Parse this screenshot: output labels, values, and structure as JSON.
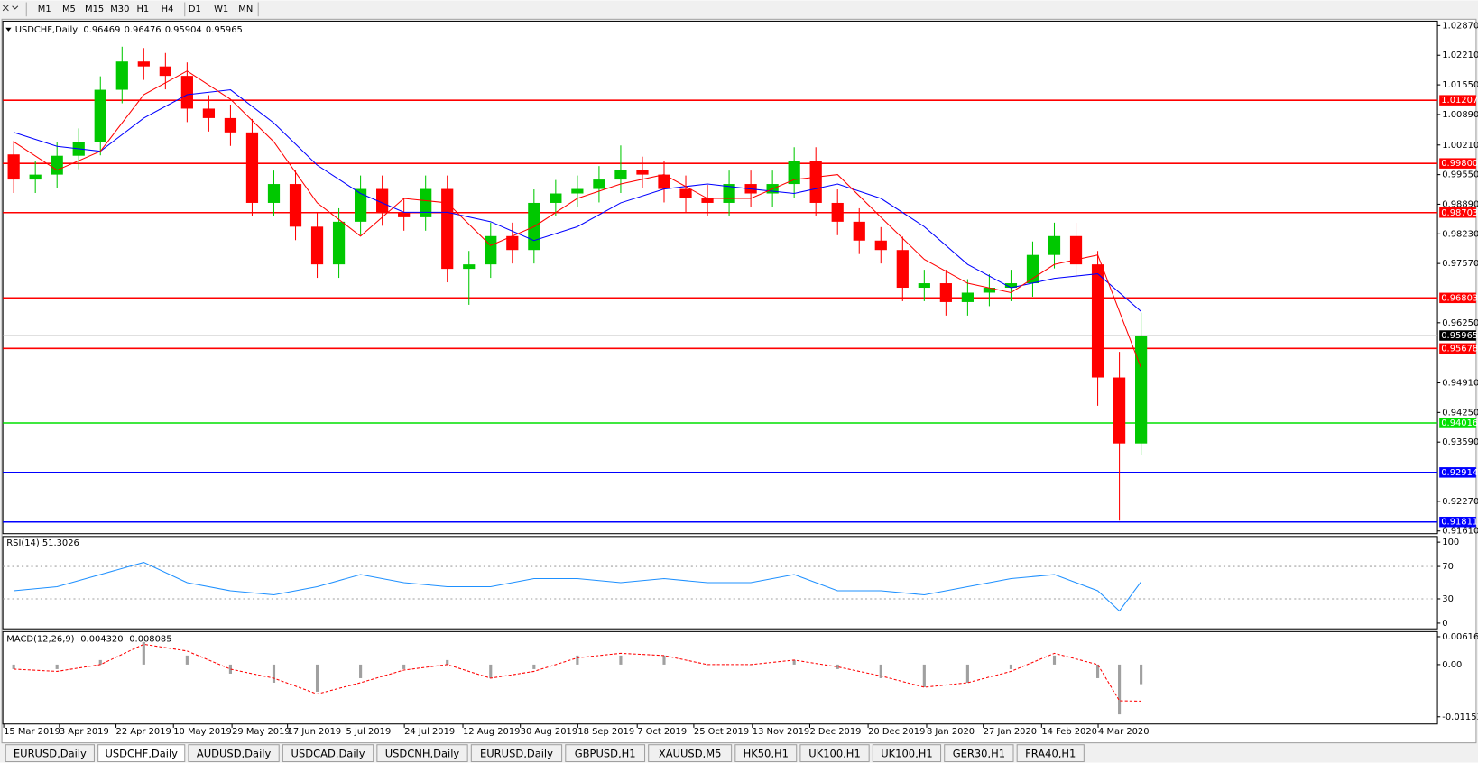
{
  "toolbar": [
    "M1",
    "M5",
    "M15",
    "M30",
    "H1",
    "H4",
    "D1",
    "W1",
    "MN"
  ],
  "tabs": [
    "EURUSD,Daily",
    "USDCHF,Daily",
    "AUDUSD,Daily",
    "USDCAD,Daily",
    "USDCNH,Daily",
    "EURUSD,Daily",
    "GBPUSD,H1",
    "XAUUSD,M5",
    "HK50,H1",
    "UK100,H1",
    "UK100,H1",
    "GER30,H1",
    "FRA40,H1"
  ],
  "active_tab": 1,
  "chart_data": [
    {
      "type": "candlestick",
      "title": "USDCHF,Daily",
      "header_prices": [
        0.96469,
        0.96476,
        0.95904,
        0.95965
      ],
      "up_color": "#00c800",
      "down_color": "#ff0000",
      "x": [
        0,
        1,
        2,
        3,
        4,
        5,
        6,
        7,
        8,
        9,
        10,
        11,
        12,
        13,
        14,
        15,
        16,
        17,
        18,
        19,
        20,
        21,
        22,
        23,
        24,
        25,
        26,
        27,
        28,
        29,
        30,
        31,
        32,
        33,
        34,
        35,
        36,
        37,
        38,
        39,
        40,
        41,
        42,
        43,
        44,
        45,
        46,
        47,
        48,
        49,
        50,
        51,
        52
      ],
      "open": [
        1.0,
        0.9944,
        0.9955,
        0.9997,
        1.0028,
        1.0144,
        1.0207,
        1.0196,
        1.0175,
        1.0102,
        1.0081,
        1.0049,
        0.9892,
        0.9934,
        0.9839,
        0.9755,
        0.985,
        0.9923,
        0.9871,
        0.986,
        0.9923,
        0.9745,
        0.9755,
        0.9818,
        0.9787,
        0.9892,
        0.9913,
        0.9923,
        0.9944,
        0.9965,
        0.9955,
        0.9923,
        0.9902,
        0.9892,
        0.9934,
        0.9913,
        0.9934,
        0.9986,
        0.9892,
        0.985,
        0.9808,
        0.9787,
        0.9703,
        0.9713,
        0.9671,
        0.9692,
        0.9703,
        0.9713,
        0.9776,
        0.9818,
        0.9755,
        0.9503,
        0.9356
      ],
      "high": [
        1.003,
        0.9985,
        1.0027,
        1.0058,
        1.0174,
        1.024,
        1.0237,
        1.0226,
        1.0205,
        1.0132,
        1.0111,
        1.0079,
        0.9964,
        0.9964,
        0.9869,
        0.988,
        0.9953,
        0.9953,
        0.9901,
        0.9953,
        0.9953,
        0.9785,
        0.9848,
        0.9848,
        0.9922,
        0.9943,
        0.9953,
        0.9974,
        1.002,
        0.9995,
        0.9985,
        0.9953,
        0.9932,
        0.9964,
        0.9964,
        0.9964,
        1.0016,
        1.0016,
        0.9922,
        0.988,
        0.9838,
        0.9817,
        0.9743,
        0.9743,
        0.9722,
        0.9733,
        0.9743,
        0.9806,
        0.9848,
        0.9848,
        0.9785,
        0.956,
        0.96476
      ],
      "low": [
        0.9914,
        0.9914,
        0.9925,
        0.9967,
        0.9998,
        1.0114,
        1.0166,
        1.0145,
        1.0072,
        1.0051,
        1.0019,
        0.9862,
        0.9862,
        0.9809,
        0.9725,
        0.9725,
        0.982,
        0.9841,
        0.983,
        0.983,
        0.9715,
        0.9665,
        0.9725,
        0.9757,
        0.9757,
        0.9862,
        0.9883,
        0.9893,
        0.9914,
        0.9925,
        0.9893,
        0.9872,
        0.9862,
        0.9862,
        0.9883,
        0.9883,
        0.9904,
        0.9862,
        0.982,
        0.9778,
        0.9757,
        0.9673,
        0.9673,
        0.9641,
        0.9641,
        0.9662,
        0.9673,
        0.9683,
        0.9746,
        0.9725,
        0.944,
        0.9184,
        0.933
      ],
      "close": [
        0.9944,
        0.9955,
        0.9997,
        1.0028,
        1.0144,
        1.0207,
        1.0196,
        1.0175,
        1.0102,
        1.0081,
        1.0049,
        0.9892,
        0.9934,
        0.9839,
        0.9755,
        0.985,
        0.9923,
        0.9871,
        0.986,
        0.9923,
        0.9745,
        0.9755,
        0.9818,
        0.9787,
        0.9892,
        0.9913,
        0.9923,
        0.9944,
        0.9965,
        0.9955,
        0.9923,
        0.9902,
        0.9892,
        0.9934,
        0.9913,
        0.9934,
        0.9986,
        0.9892,
        0.985,
        0.9808,
        0.9787,
        0.9703,
        0.9713,
        0.9671,
        0.9692,
        0.9703,
        0.9713,
        0.9776,
        0.9818,
        0.9755,
        0.9503,
        0.9356,
        0.95965
      ],
      "lines": [
        {
          "color": "#0000ff",
          "x": [
            0,
            2,
            4,
            6,
            8,
            10,
            12,
            14,
            16,
            18,
            20,
            22,
            24,
            26,
            28,
            30,
            32,
            34,
            36,
            38,
            40,
            42,
            44,
            46,
            48,
            50,
            52
          ],
          "values": [
            1.0049,
            1.0018,
            1.0007,
            1.0081,
            1.0133,
            1.0144,
            1.007,
            0.9976,
            0.9913,
            0.9871,
            0.9871,
            0.985,
            0.9808,
            0.9839,
            0.9892,
            0.9923,
            0.9934,
            0.9923,
            0.9913,
            0.9934,
            0.9902,
            0.9839,
            0.9755,
            0.9703,
            0.9724,
            0.9734,
            0.965
          ]
        },
        {
          "color": "#ff0000",
          "x": [
            0,
            2,
            4,
            6,
            8,
            10,
            12,
            14,
            16,
            18,
            20,
            22,
            24,
            26,
            28,
            30,
            32,
            34,
            36,
            38,
            40,
            42,
            44,
            46,
            48,
            50,
            52
          ],
          "values": [
            1.0028,
            0.9965,
            1.0007,
            1.0133,
            1.0186,
            1.0123,
            1.0028,
            0.9892,
            0.9818,
            0.9902,
            0.9892,
            0.9797,
            0.9839,
            0.9902,
            0.9934,
            0.9955,
            0.9902,
            0.9902,
            0.9944,
            0.9955,
            0.986,
            0.9766,
            0.9713,
            0.9692,
            0.9755,
            0.9776,
            0.9524
          ]
        }
      ],
      "levels": [
        {
          "value": 1.01207,
          "color": "#ff0000"
        },
        {
          "value": 0.998,
          "label": "0.99800",
          "color": "#ff0000"
        },
        {
          "value": 0.98703,
          "color": "#ff0000"
        },
        {
          "value": 0.96803,
          "color": "#ff0000"
        },
        {
          "value": 0.95678,
          "color": "#ff0000"
        },
        {
          "value": 0.94016,
          "color": "#00e000"
        },
        {
          "value": 0.92914,
          "color": "#0000ff"
        },
        {
          "value": 0.91811,
          "color": "#0000ff"
        }
      ],
      "current_price": 0.95965,
      "xlim": [
        0,
        66.17
      ],
      "ylim": [
        0.9155,
        1.0297
      ],
      "yticks": [
        {
          "value": 1.0287,
          "label": "1.02870"
        },
        {
          "value": 1.0221,
          "label": "1.02210"
        },
        {
          "value": 1.0155,
          "label": "1.01550"
        },
        {
          "value": 1.0089,
          "label": "1.00890"
        },
        {
          "value": 1.0021,
          "label": "1.00210"
        },
        {
          "value": 0.9955,
          "label": "0.99550"
        },
        {
          "value": 0.9889,
          "label": "0.98890"
        },
        {
          "value": 0.9823,
          "label": "0.98230"
        },
        {
          "value": 0.9757,
          "label": "0.97570"
        },
        {
          "value": 0.9625,
          "label": "0.96250"
        },
        {
          "value": 0.9491,
          "label": "0.94910"
        },
        {
          "value": 0.9425,
          "label": "0.94250"
        },
        {
          "value": 0.9359,
          "label": "0.93590"
        },
        {
          "value": 0.9227,
          "label": "0.92270"
        },
        {
          "value": 0.9161,
          "label": "0.91610"
        }
      ]
    },
    {
      "type": "line",
      "title": "RSI(14) 51.3026",
      "color": "#1e90ff",
      "x": [
        0,
        2,
        4,
        6,
        8,
        10,
        12,
        14,
        16,
        18,
        20,
        22,
        24,
        26,
        28,
        30,
        32,
        34,
        36,
        38,
        40,
        42,
        44,
        46,
        48,
        50,
        51,
        52
      ],
      "values": [
        40,
        45,
        60,
        75,
        50,
        40,
        35,
        45,
        60,
        50,
        45,
        45,
        55,
        55,
        50,
        55,
        50,
        50,
        60,
        40,
        40,
        35,
        45,
        55,
        60,
        40,
        15,
        51.3
      ],
      "levels": [
        70,
        30
      ],
      "xlim": [
        0,
        66.17
      ],
      "ylim": [
        -7,
        107
      ],
      "yticks": [
        100,
        70,
        30,
        0
      ]
    },
    {
      "type": "macd",
      "title": "MACD(12,26,9) -0.004320 -0.008085",
      "color": "#a0a0a0",
      "signal_color": "#ff0000",
      "x": [
        0,
        2,
        4,
        6,
        8,
        10,
        12,
        14,
        16,
        18,
        20,
        22,
        24,
        26,
        28,
        30,
        32,
        34,
        36,
        38,
        40,
        42,
        44,
        46,
        48,
        50,
        51,
        52
      ],
      "values": [
        -0.001,
        -0.001,
        0.001,
        0.005,
        0.002,
        -0.002,
        -0.004,
        -0.006,
        -0.003,
        -0.001,
        0.001,
        -0.003,
        -0.001,
        0.002,
        0.002,
        0.002,
        0,
        0,
        0.001,
        -0.001,
        -0.003,
        -0.005,
        -0.004,
        -0.001,
        0.002,
        -0.003,
        -0.011,
        -0.00432
      ],
      "signal": [
        -0.001,
        -0.0015,
        0,
        0.0045,
        0.003,
        -0.001,
        -0.003,
        -0.0065,
        -0.004,
        -0.0012,
        0,
        -0.003,
        -0.0015,
        0.0015,
        0.0025,
        0.002,
        0,
        0,
        0.001,
        -0.0005,
        -0.0025,
        -0.005,
        -0.004,
        -0.0015,
        0.0025,
        0,
        -0.008,
        -0.008085
      ],
      "xlim": [
        0,
        66.17
      ],
      "ylim": [
        -0.01312,
        0.00729
      ],
      "yticks": [
        0.006167,
        {
          "value": 0,
          "label": "0.00"
        },
        -0.011531
      ],
      "xticks": [
        {
          "value": 0.04,
          "label": "15 Mar 2019"
        },
        {
          "value": 2.61,
          "label": "3 Apr 2019"
        },
        {
          "value": 5.22,
          "label": "22 Apr 2019"
        },
        {
          "value": 7.87,
          "label": "10 May 2019"
        },
        {
          "value": 10.57,
          "label": "29 May 2019"
        },
        {
          "value": 13.13,
          "label": "17 Jun 2019"
        },
        {
          "value": 15.83,
          "label": "5 Jul 2019"
        },
        {
          "value": 18.52,
          "label": "24 Jul 2019"
        },
        {
          "value": 21.22,
          "label": "12 Aug 2019"
        },
        {
          "value": 23.87,
          "label": "30 Aug 2019"
        },
        {
          "value": 26.52,
          "label": "18 Sep 2019"
        },
        {
          "value": 29.26,
          "label": "7 Oct 2019"
        },
        {
          "value": 31.87,
          "label": "25 Oct 2019"
        },
        {
          "value": 34.57,
          "label": "13 Nov 2019"
        },
        {
          "value": 37.22,
          "label": "2 Dec 2019"
        },
        {
          "value": 39.91,
          "label": "20 Dec 2019"
        },
        {
          "value": 42.61,
          "label": "8 Jan 2020"
        },
        {
          "value": 45.22,
          "label": "27 Jan 2020"
        },
        {
          "value": 47.91,
          "label": "14 Feb 2020"
        },
        {
          "value": 50.52,
          "label": "4 Mar 2020"
        }
      ]
    }
  ]
}
